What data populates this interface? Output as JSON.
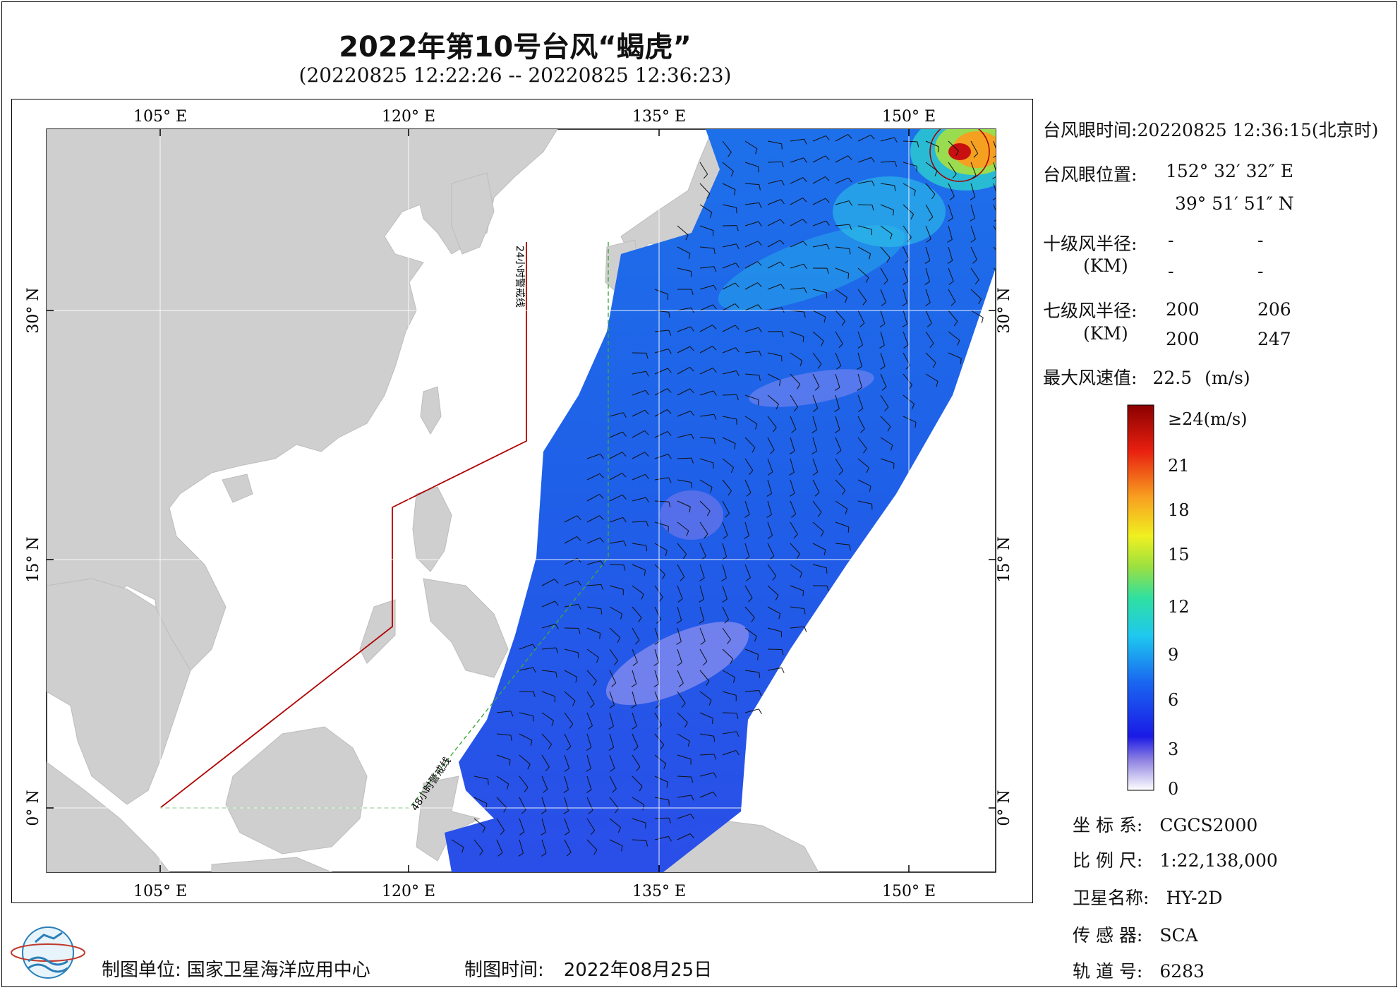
{
  "header": {
    "title": "2022年第10号台风“蝎虎”",
    "subtitle": "(20220825 12:22:26 -- 20220825 12:36:23)"
  },
  "map": {
    "lon_labels": [
      "105° E",
      "120° E",
      "135° E",
      "150° E"
    ],
    "lat_labels": [
      "30° N",
      "15° N",
      "0° N"
    ],
    "line_24h": "24小时警戒线",
    "line_48h": "48小时警戒线",
    "colors": {
      "land": "#cfcfcf",
      "sea": "#ffffff",
      "line24": "#b00000",
      "line48": "#3fa83f"
    }
  },
  "info": {
    "eye_time_label": "台风眼时间:",
    "eye_time_value": "20220825 12:36:15(北京时)",
    "eye_pos_label": "台风眼位置:",
    "eye_pos_lon": "152° 32′ 32″ E",
    "eye_pos_lat": "39° 51′ 51″ N",
    "r10_label": "十级风半径:",
    "r10_unit": "(KM)",
    "r10_values": [
      "-",
      "-",
      "-",
      "-"
    ],
    "r7_label": "七级风半径:",
    "r7_unit": "(KM)",
    "r7_values": [
      "200",
      "206",
      "200",
      "247"
    ],
    "max_wind_label": "最大风速值:",
    "max_wind_value": "22.5",
    "max_wind_unit": "(m/s)"
  },
  "colorbar": {
    "labels": [
      "≥24(m/s)",
      "21",
      "18",
      "15",
      "12",
      "9",
      "6",
      "3",
      "0"
    ]
  },
  "meta": {
    "coord_label": "坐 标 系:",
    "coord_value": "CGCS2000",
    "scale_label": "比 例 尺:",
    "scale_value": "1:22,138,000",
    "sat_label": "卫星名称:",
    "sat_value": "HY-2D",
    "sensor_label": "传 感 器:",
    "sensor_value": "SCA",
    "orbit_label": "轨 道 号:",
    "orbit_value": "6283"
  },
  "footer": {
    "org_label": "制图单位:",
    "org_value": "国家卫星海洋应用中心",
    "date_label": "制图时间:",
    "date_value": "2022年08月25日"
  }
}
